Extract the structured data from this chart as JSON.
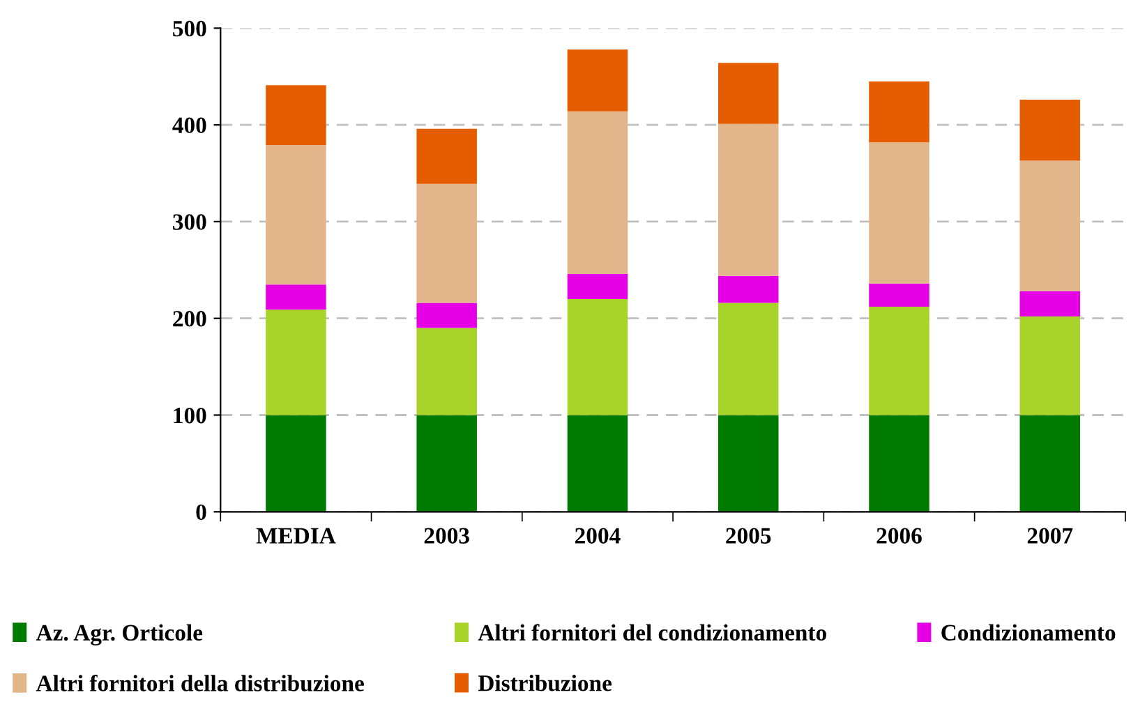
{
  "chart_data": {
    "type": "bar",
    "stacked": true,
    "categories": [
      "MEDIA",
      "2003",
      "2004",
      "2005",
      "2006",
      "2007"
    ],
    "series": [
      {
        "name": "Az. Agr. Orticole",
        "color": "#007a00",
        "values": [
          100,
          100,
          100,
          100,
          100,
          100
        ]
      },
      {
        "name": "Altri fornitori del condizionamento",
        "color": "#a8d42a",
        "values": [
          109,
          90,
          120,
          116,
          112,
          102
        ]
      },
      {
        "name": "Condizionamento",
        "color": "#e600e6",
        "values": [
          26,
          26,
          26,
          28,
          24,
          26
        ]
      },
      {
        "name": "Altri fornitori della distribuzione",
        "color": "#e2b68a",
        "values": [
          144,
          123,
          168,
          157,
          146,
          135
        ]
      },
      {
        "name": "Distribuzione",
        "color": "#e65c00",
        "values": [
          62,
          57,
          64,
          63,
          63,
          63
        ]
      }
    ],
    "ylim": [
      0,
      500
    ],
    "yticks": [
      0,
      100,
      200,
      300,
      400,
      500
    ],
    "grid": "y",
    "legend": "bottom"
  }
}
